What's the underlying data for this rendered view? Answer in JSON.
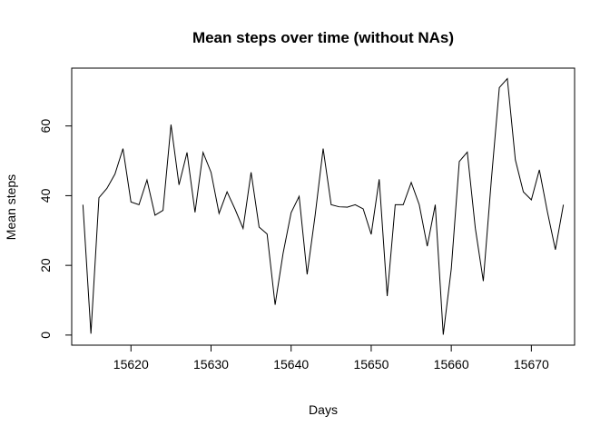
{
  "chart_data": {
    "type": "line",
    "title": "Mean steps over time (without NAs)",
    "xlabel": "Days",
    "ylabel": "Mean steps",
    "xlim": [
      15612.6,
      15675.4
    ],
    "ylim": [
      -2.9,
      76.6
    ],
    "xticks": [
      15620,
      15630,
      15640,
      15650,
      15660,
      15670
    ],
    "yticks": [
      0,
      20,
      40,
      60
    ],
    "grid": false,
    "legend": "none",
    "line_color": "#000000",
    "series": [
      {
        "x": [
          15614,
          15615,
          15616,
          15617,
          15618,
          15619,
          15620,
          15621,
          15622,
          15623,
          15624,
          15625,
          15626,
          15627,
          15628,
          15629,
          15630,
          15631,
          15632,
          15633,
          15634,
          15635,
          15636,
          15637,
          15638,
          15639,
          15640,
          15641,
          15642,
          15643,
          15644,
          15645,
          15646,
          15647,
          15648,
          15649,
          15650,
          15651,
          15652,
          15653,
          15654,
          15655,
          15656,
          15657,
          15658,
          15659,
          15660,
          15661,
          15662,
          15663,
          15664,
          15665,
          15666,
          15667,
          15668,
          15669,
          15670,
          15671,
          15672,
          15673,
          15674
        ],
        "values": [
          37.4,
          0.4,
          39.4,
          42.1,
          46.2,
          53.5,
          38.2,
          37.4,
          44.5,
          34.4,
          35.8,
          60.4,
          43.1,
          52.4,
          35.2,
          52.4,
          46.7,
          34.9,
          41.1,
          36.1,
          30.6,
          46.7,
          31.0,
          29.0,
          8.7,
          23.5,
          35.1,
          39.8,
          17.4,
          34.4,
          53.5,
          37.4,
          36.8,
          36.7,
          37.4,
          36.2,
          28.9,
          44.7,
          11.2,
          37.4,
          37.4,
          43.8,
          37.4,
          25.5,
          37.4,
          0.1,
          19.0,
          49.8,
          52.5,
          30.7,
          15.5,
          44.4,
          71.0,
          73.6,
          50.3,
          41.1,
          38.8,
          47.4,
          35.4,
          24.5,
          37.4
        ]
      }
    ]
  }
}
